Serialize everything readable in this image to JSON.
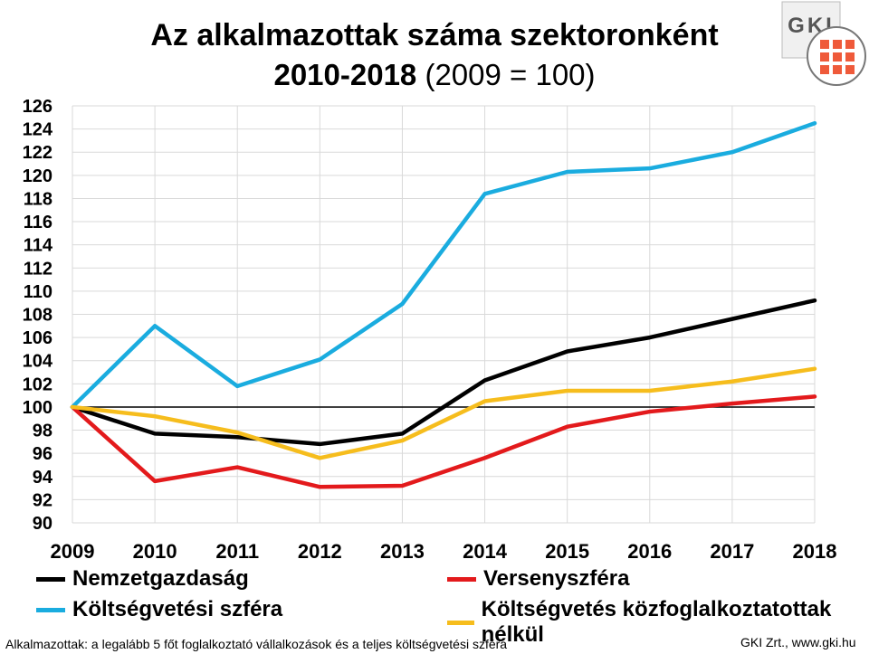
{
  "header": {
    "title": "Az alkalmazottak száma szektoronként",
    "subtitle_years": "2010-2018",
    "subtitle_base": "(2009 = 100)"
  },
  "logo": {
    "text": "GKI"
  },
  "chart_data": {
    "type": "line",
    "x": [
      "2009",
      "2010",
      "2011",
      "2012",
      "2013",
      "2014",
      "2015",
      "2016",
      "2017",
      "2018"
    ],
    "ylim": [
      90,
      126
    ],
    "yticks": [
      90,
      92,
      94,
      96,
      98,
      100,
      102,
      104,
      106,
      108,
      110,
      112,
      114,
      116,
      118,
      120,
      122,
      124,
      126
    ],
    "grid": true,
    "legend_position": "bottom",
    "reference_line": 100,
    "series": [
      {
        "name": "Nemzetgazdaság",
        "color": "#000000",
        "values": [
          100,
          97.7,
          97.4,
          96.8,
          97.7,
          102.3,
          104.8,
          106.0,
          107.6,
          109.2
        ]
      },
      {
        "name": "Versenyszféra",
        "color": "#e31a1c",
        "values": [
          100,
          93.6,
          94.8,
          93.1,
          93.2,
          95.6,
          98.3,
          99.6,
          100.3,
          100.9
        ]
      },
      {
        "name": "Költségvetési szféra",
        "color": "#1aacdf",
        "values": [
          100,
          107.0,
          101.8,
          104.1,
          108.9,
          118.4,
          120.3,
          120.6,
          122.0,
          124.5
        ]
      },
      {
        "name": "Költségvetés közfoglalkoztatottak nélkül",
        "color": "#f6bd1d",
        "values": [
          100,
          99.2,
          97.8,
          95.6,
          97.1,
          100.5,
          101.4,
          101.4,
          102.2,
          103.3
        ]
      }
    ]
  },
  "footer": {
    "note": "Alkalmazottak: a legalább 5 főt foglalkoztató vállalkozások és a teljes költségvetési szféra",
    "source": "GKI Zrt., www.gki.hu"
  }
}
